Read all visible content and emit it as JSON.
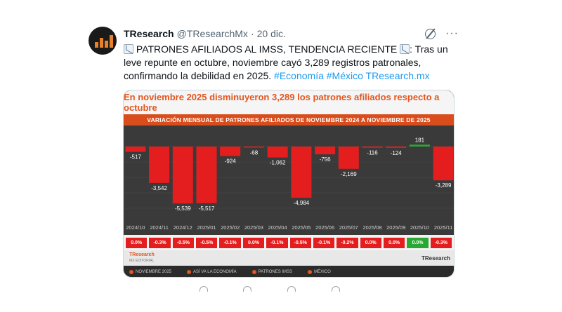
{
  "tweet": {
    "name": "TResearch",
    "handle": "@TResearchMx",
    "separator": "·",
    "date": "20 dic.",
    "text_part1": " PATRONES AFILIADOS AL IMSS, TENDENCIA RECIENTE ",
    "text_part2": ": Tras un leve repunte en octubre, noviembre cayó 3,289 registros patronales, confirmando la debilidad en 2025. ",
    "hashtag1": "#Economía",
    "hashtag2": "#México",
    "link": "TResearch.mx",
    "more_label": "···"
  },
  "icons": {
    "avatar": "tresearch-logo-icon",
    "grok": "grok-icon",
    "more": "more-icon",
    "chart_emoji": "chart-decreasing-icon"
  },
  "card": {
    "banner": "En noviembre 2025 disminuyeron 3,289 los patrones afiliados respecto a octubre",
    "subheading": "VARIACIÓN MENSUAL DE PATRONES AFILIADOS DE NOVIEMBRE 2024 A NOVIEMBRE DE 2025",
    "brand": "TResearch",
    "brand_sub": "MX EDITORIAL",
    "logo_right": "TResearch",
    "footer_items": [
      "NOVIEMBRE 2025",
      "ASÍ VA LA ECONOMÍA",
      "PATRONES IMSS",
      "MÉXICO"
    ]
  },
  "colors": {
    "negative": "#e41e1e",
    "positive": "#2aa834",
    "accent": "#e4561f",
    "hashtag": "#1d9bf0"
  },
  "chart_data": {
    "type": "bar",
    "categories": [
      "2024/10",
      "2024/11",
      "2024/12",
      "2025/01",
      "2025/02",
      "2025/03",
      "2025/04",
      "2025/05",
      "2025/06",
      "2025/07",
      "2025/08",
      "2025/09",
      "2025/10",
      "2025/11"
    ],
    "values": [
      -517,
      -3542,
      -5539,
      -5517,
      -924,
      -68,
      -1062,
      -4984,
      -756,
      -2169,
      -116,
      -124,
      181,
      -3289
    ],
    "value_labels": [
      "-517",
      "-3,542",
      "-5,539",
      "-5,517",
      "-924",
      "-68",
      "-1,062",
      "-4,984",
      "-756",
      "-2,169",
      "-116",
      "-124",
      "181",
      "-3,289"
    ],
    "pct_labels": [
      "0.0%",
      "-0.3%",
      "-0.5%",
      "-0.5%",
      "-0.1%",
      "0.0%",
      "-0.1%",
      "-0.5%",
      "-0.1%",
      "-0.2%",
      "0.0%",
      "0.0%",
      "0.0%",
      "-0.3%"
    ],
    "ylim": [
      -6000,
      1000
    ],
    "title": "VARIACIÓN MENSUAL DE PATRONES AFILIADOS DE NOVIEMBRE 2024 A NOVIEMBRE DE 2025"
  }
}
